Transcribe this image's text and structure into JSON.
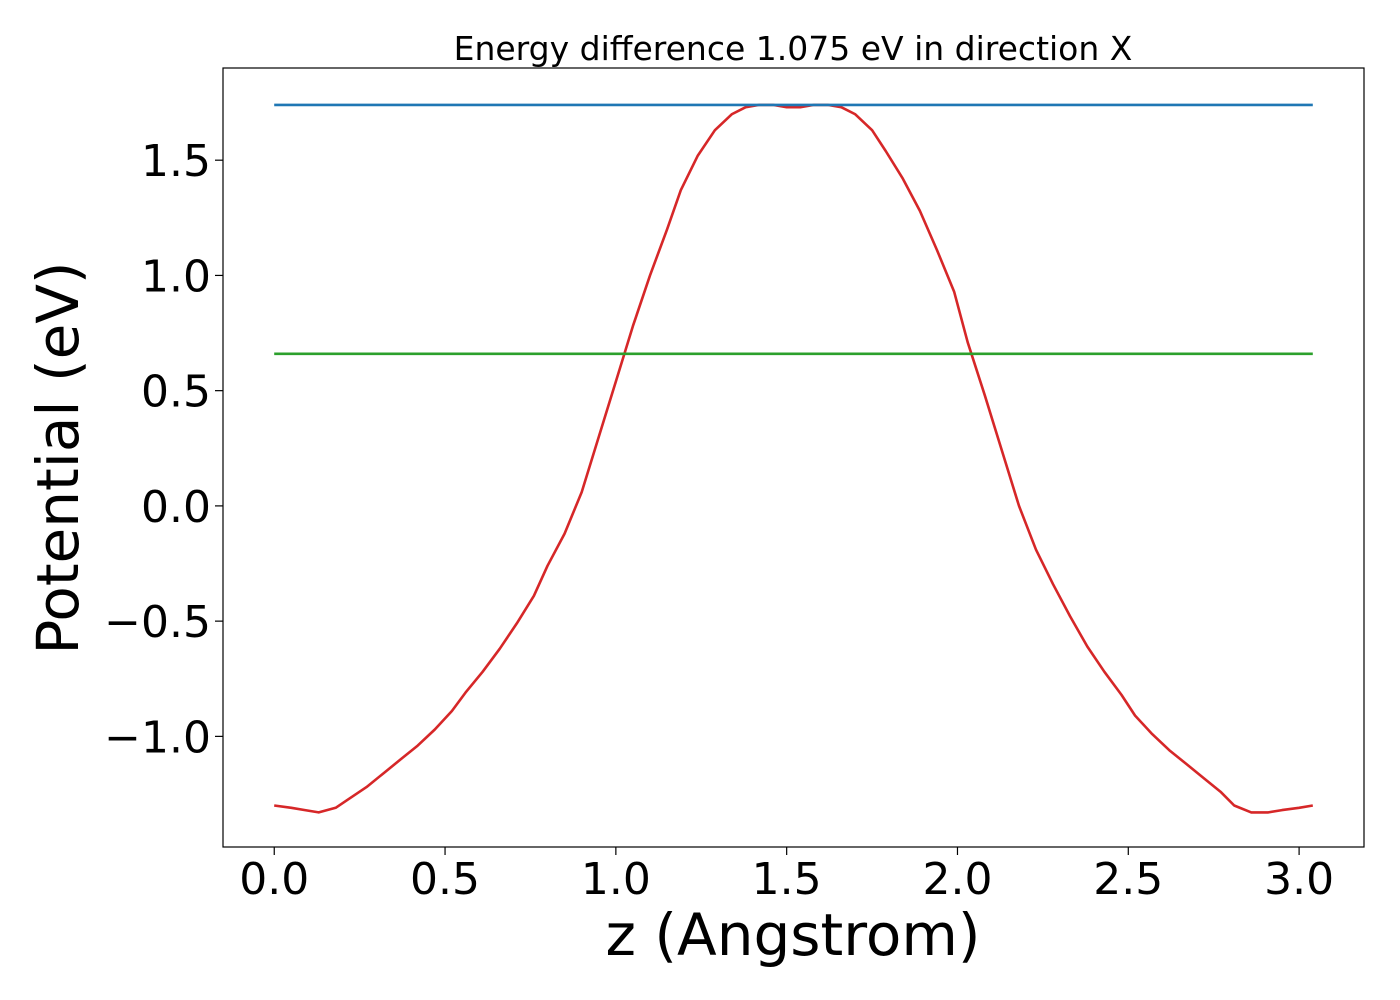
{
  "chart_data": {
    "type": "line",
    "title": "Energy difference 1.075 eV in direction X",
    "xlabel": "z (Angstrom)",
    "ylabel": "Potential (eV)",
    "xlim": [
      -0.15,
      3.19
    ],
    "ylim": [
      -1.48,
      1.9
    ],
    "xticks": [
      0.0,
      0.5,
      1.0,
      1.5,
      2.0,
      2.5,
      3.0
    ],
    "xtick_labels": [
      "0.0",
      "0.5",
      "1.0",
      "1.5",
      "2.0",
      "2.5",
      "3.0"
    ],
    "yticks": [
      -1.0,
      -0.5,
      0.0,
      0.5,
      1.0,
      1.5
    ],
    "ytick_labels": [
      "−1.0",
      "−0.5",
      "0.0",
      "0.5",
      "1.0",
      "1.5"
    ],
    "grid": false,
    "series": [
      {
        "color": "#d62728",
        "x": [
          0.0,
          0.05,
          0.09,
          0.13,
          0.18,
          0.22,
          0.27,
          0.32,
          0.37,
          0.42,
          0.47,
          0.52,
          0.56,
          0.61,
          0.66,
          0.71,
          0.76,
          0.8,
          0.85,
          0.9,
          0.95,
          1.0,
          1.05,
          1.1,
          1.15,
          1.19,
          1.24,
          1.29,
          1.34,
          1.38,
          1.42,
          1.46,
          1.5,
          1.54,
          1.58,
          1.62,
          1.66,
          1.7,
          1.75,
          1.79,
          1.84,
          1.89,
          1.94,
          1.99,
          2.03,
          2.08,
          2.13,
          2.18,
          2.23,
          2.28,
          2.33,
          2.38,
          2.43,
          2.48,
          2.52,
          2.57,
          2.62,
          2.67,
          2.72,
          2.77,
          2.81,
          2.86,
          2.91,
          2.95,
          3.0,
          3.04
        ],
        "y": [
          -1.3,
          -1.31,
          -1.32,
          -1.33,
          -1.31,
          -1.27,
          -1.22,
          -1.16,
          -1.1,
          -1.04,
          -0.97,
          -0.89,
          -0.81,
          -0.72,
          -0.62,
          -0.51,
          -0.39,
          -0.26,
          -0.12,
          0.06,
          0.3,
          0.54,
          0.78,
          1.0,
          1.2,
          1.37,
          1.52,
          1.63,
          1.7,
          1.73,
          1.74,
          1.74,
          1.73,
          1.73,
          1.74,
          1.74,
          1.73,
          1.7,
          1.63,
          1.54,
          1.42,
          1.28,
          1.11,
          0.93,
          0.71,
          0.48,
          0.24,
          0.0,
          -0.19,
          -0.34,
          -0.48,
          -0.61,
          -0.72,
          -0.82,
          -0.91,
          -0.99,
          -1.06,
          -1.12,
          -1.18,
          -1.24,
          -1.3,
          -1.33,
          -1.33,
          -1.32,
          -1.31,
          -1.3
        ]
      },
      {
        "color": "#1f77b4",
        "x": [
          0.0,
          3.04
        ],
        "y": [
          1.74,
          1.74
        ]
      },
      {
        "color": "#2ca02c",
        "x": [
          0.0,
          3.04
        ],
        "y": [
          0.66,
          0.66
        ]
      }
    ]
  }
}
